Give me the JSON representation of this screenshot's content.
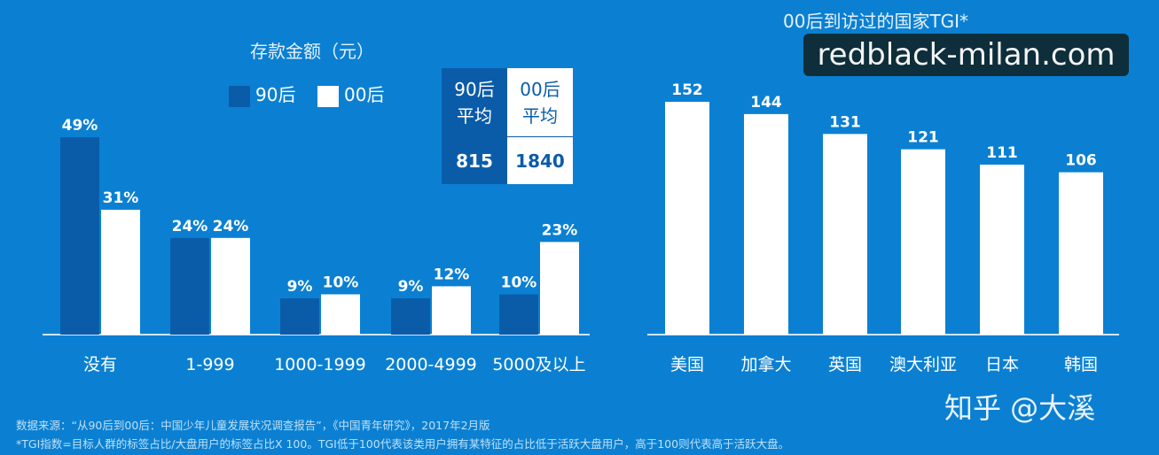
{
  "colors": {
    "background": "#0b80d2",
    "dark": "#0a5ca9",
    "light": "#ffffff"
  },
  "left_legend": {
    "s1": "90后",
    "s2": "00后"
  },
  "avg_table": {
    "h1": "90后\n平均",
    "h2": "00后\n平均",
    "v1": "815",
    "v2": "1840"
  },
  "chart_data": [
    {
      "type": "bar",
      "title": "存款金额（元）",
      "categories": [
        "没有",
        "1-999",
        "1000-1999",
        "2000-4999",
        "5000及以上"
      ],
      "series": [
        {
          "name": "90后",
          "values": [
            49,
            24,
            9,
            9,
            10
          ]
        },
        {
          "name": "00后",
          "values": [
            31,
            24,
            10,
            12,
            23
          ]
        }
      ],
      "unit": "%",
      "ylim": [
        0,
        50
      ]
    },
    {
      "type": "bar",
      "title": "00后到访过的国家TGI*",
      "categories": [
        "美国",
        "加拿大",
        "英国",
        "澳大利亚",
        "日本",
        "韩国"
      ],
      "values": [
        152,
        144,
        131,
        121,
        111,
        106
      ],
      "ylim": [
        0,
        160
      ]
    }
  ],
  "footer": {
    "source": "数据来源：“从90后到00后：中国少年儿童发展状况调查报告”，《中国青年研究》，2017年2月版",
    "note": "*TGI指数=目标人群的标签占比/大盘用户的标签占比X 100。TGI低于100代表该类用户拥有某特征的占比低于活跃大盘用户，高于100则代表高于活跃大盘。"
  },
  "watermark": "redblack-milan.com",
  "credit": "知乎 @大溪"
}
